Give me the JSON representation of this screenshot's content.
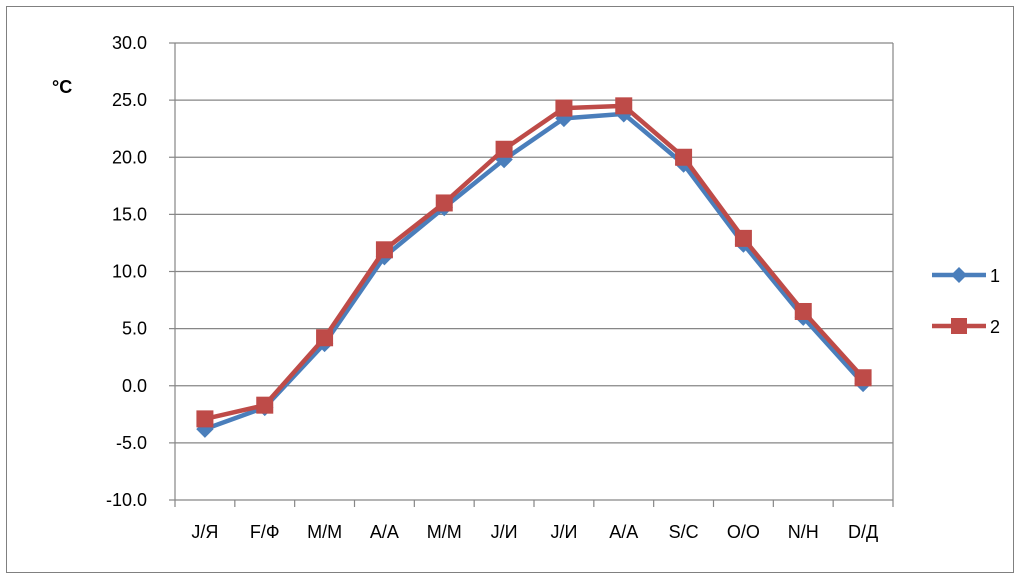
{
  "chart_data": {
    "type": "line",
    "title": "",
    "xlabel": "",
    "ylabel": "°C",
    "categories": [
      "J/Я",
      "F/Ф",
      "M/M",
      "A/A",
      "M/M",
      "J/И",
      "J/И",
      "A/A",
      "S/C",
      "O/O",
      "N/H",
      "D/Д"
    ],
    "ylim": [
      -10.0,
      30.0
    ],
    "yticks": [
      "30.0",
      "25.0",
      "20.0",
      "15.0",
      "10.0",
      "5.0",
      "0.0",
      "-5.0",
      "-10.0"
    ],
    "grid": "horizontal",
    "legend_position": "right",
    "series": [
      {
        "name": "1",
        "color": "#4A7EBB",
        "marker": "diamond",
        "values": [
          -3.8,
          -1.9,
          3.7,
          11.3,
          15.6,
          19.8,
          23.4,
          23.8,
          19.4,
          12.4,
          6.0,
          0.2
        ]
      },
      {
        "name": "2",
        "color": "#BE4B48",
        "marker": "square",
        "values": [
          -2.9,
          -1.7,
          4.2,
          11.9,
          16.0,
          20.7,
          24.3,
          24.5,
          20.0,
          12.9,
          6.5,
          0.7
        ]
      }
    ]
  }
}
